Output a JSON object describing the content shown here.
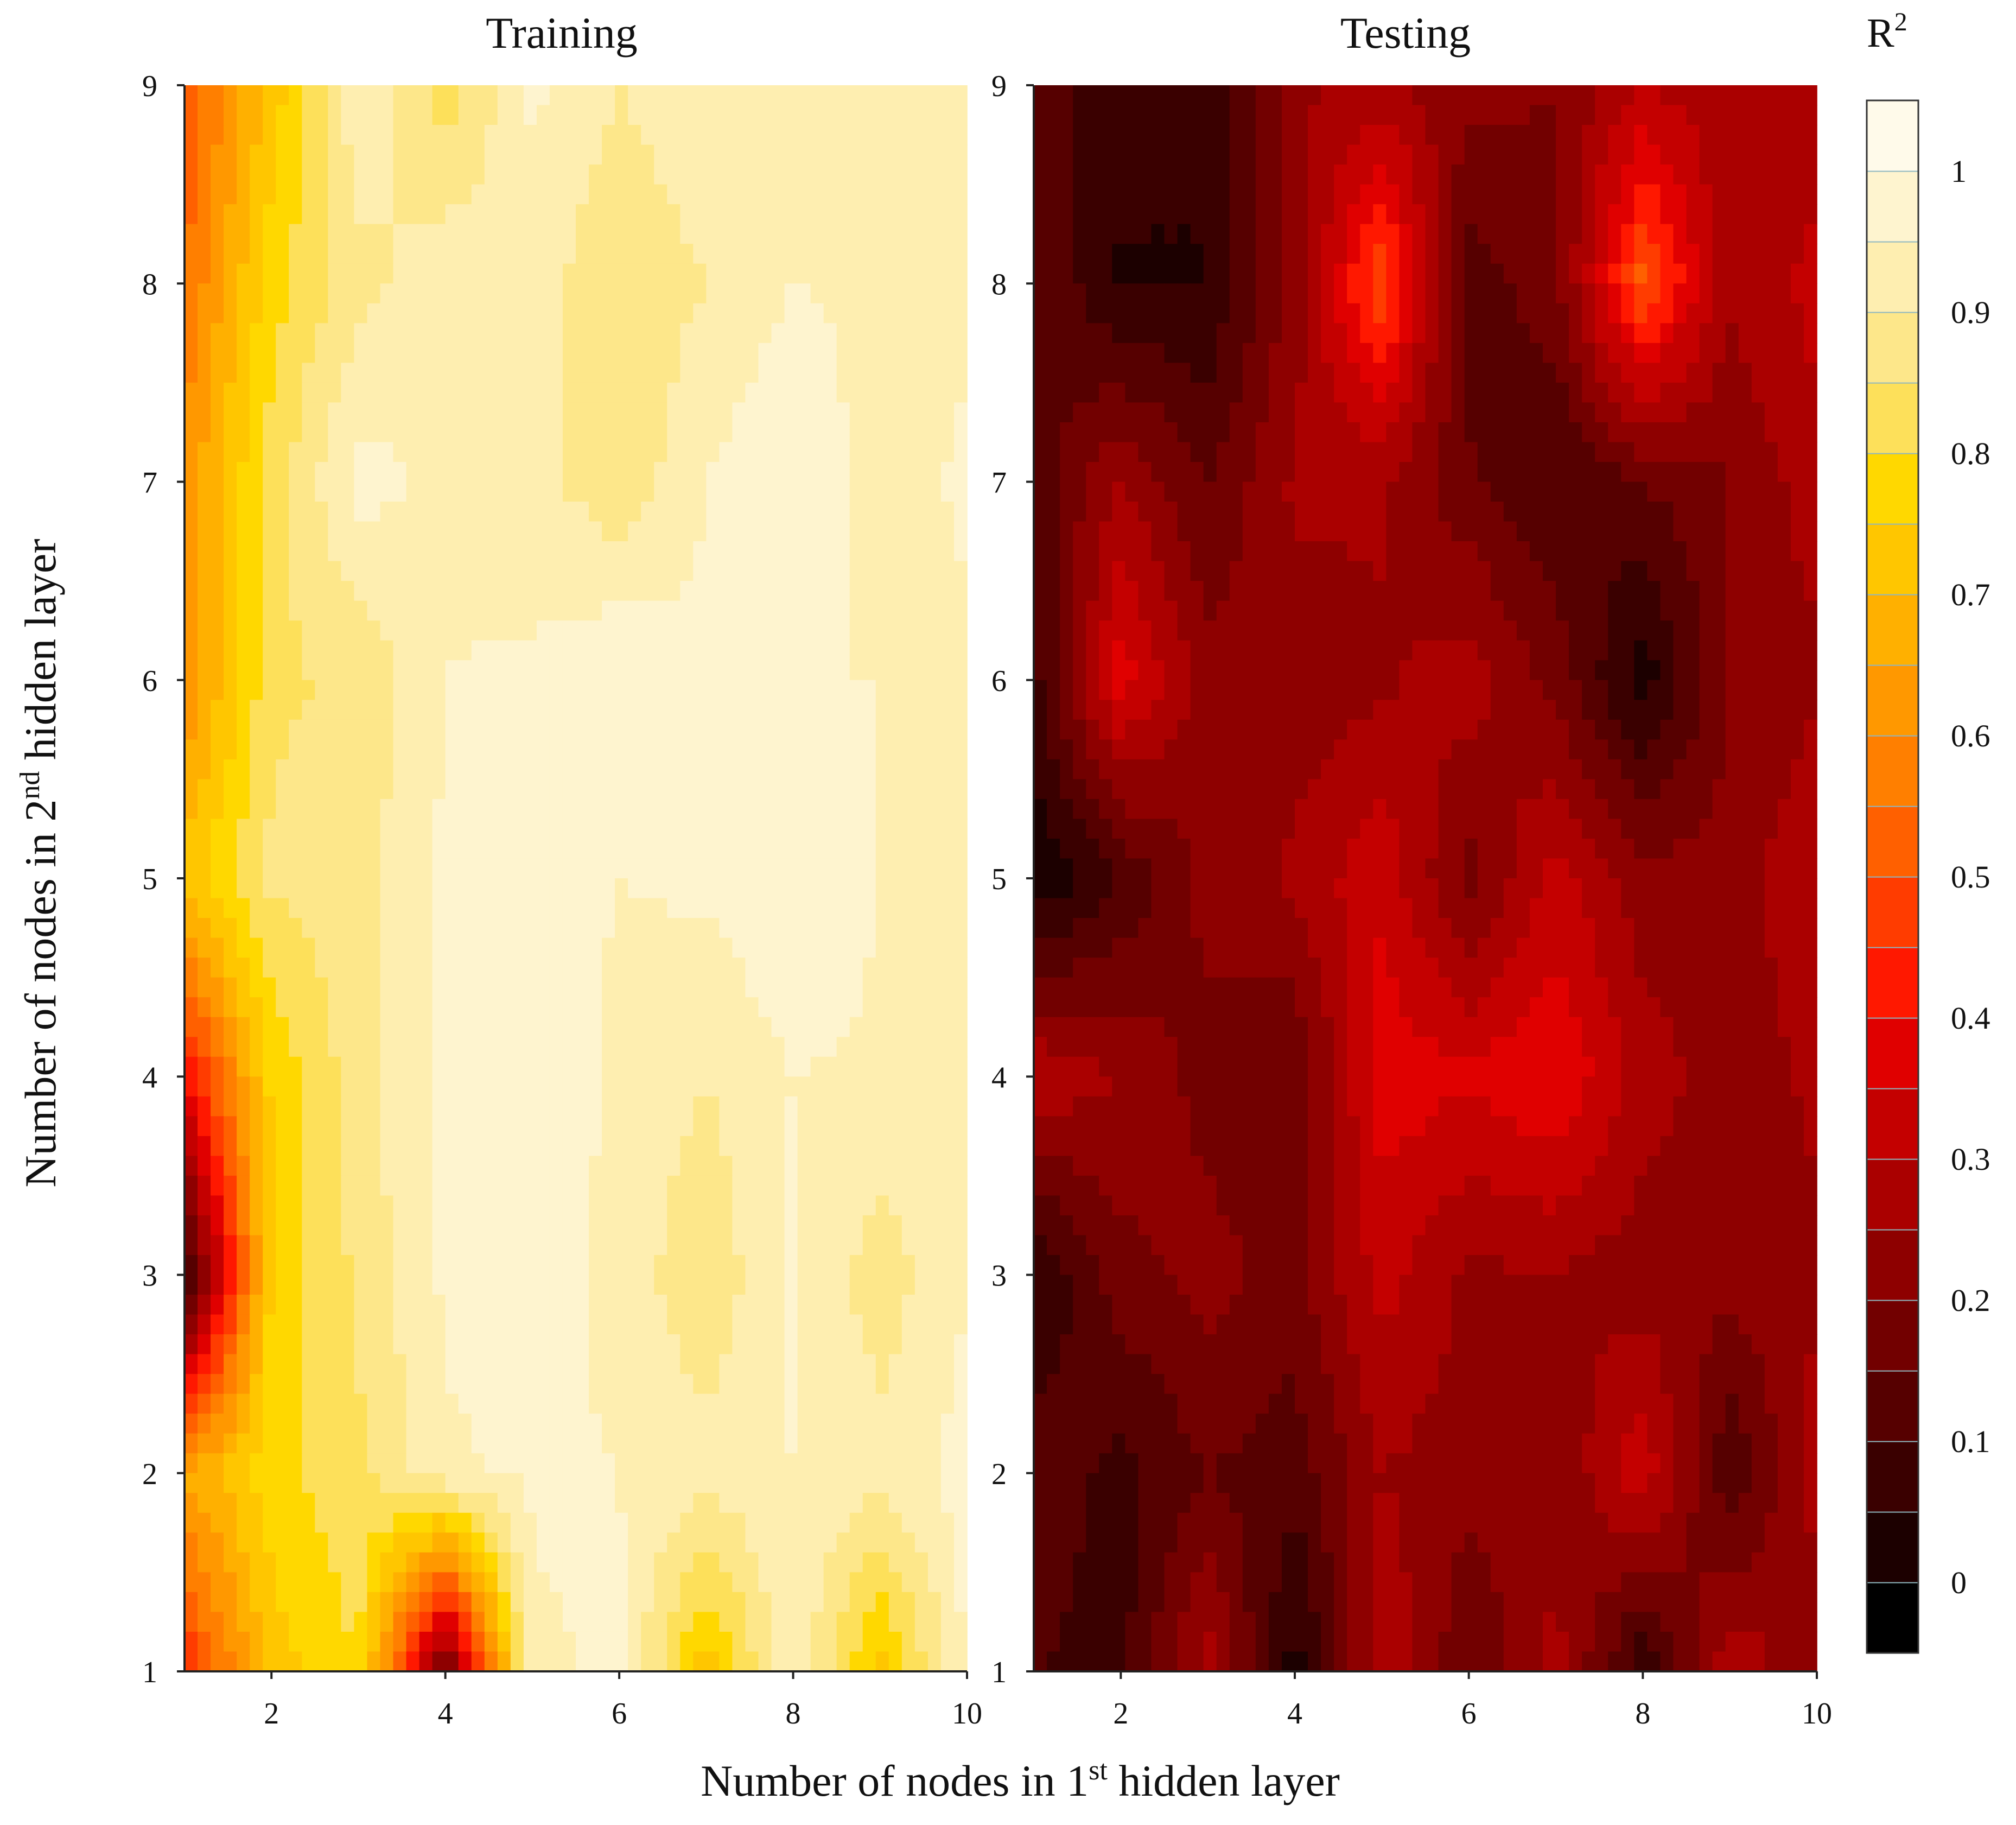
{
  "figure": {
    "xlabel_main": "Number of nodes in 1",
    "xlabel_sup": "st",
    "xlabel_rest": " hidden layer",
    "ylabel_main": "Number of nodes in 2",
    "ylabel_sup": "nd",
    "ylabel_rest": " hidden layer",
    "colorbar_title_base": "R",
    "colorbar_title_sup": "2"
  },
  "chart_data": [
    {
      "type": "heatmap",
      "title": "Training",
      "xlim": [
        1,
        10
      ],
      "ylim": [
        1,
        9
      ],
      "x_ticks": [
        "2",
        "4",
        "6",
        "8",
        "10"
      ],
      "y_ticks": [
        "1",
        "2",
        "3",
        "4",
        "5",
        "6",
        "7",
        "8",
        "9"
      ],
      "x": [
        1,
        2,
        3,
        4,
        5,
        6,
        7,
        8,
        9,
        10
      ],
      "y": [
        1,
        2,
        3,
        4,
        5,
        6,
        7,
        8,
        9
      ],
      "z": [
        [
          0.45,
          0.72,
          0.8,
          0.15,
          0.94,
          0.96,
          0.72,
          0.94,
          0.72,
          0.96
        ],
        [
          0.65,
          0.78,
          0.84,
          0.94,
          0.96,
          0.95,
          0.92,
          0.95,
          0.92,
          0.97
        ],
        [
          0.05,
          0.76,
          0.86,
          0.96,
          0.98,
          0.93,
          0.86,
          0.96,
          0.87,
          0.95
        ],
        [
          0.4,
          0.76,
          0.88,
          0.97,
          0.99,
          0.94,
          0.9,
          0.95,
          0.94,
          0.93
        ],
        [
          0.72,
          0.86,
          0.88,
          0.96,
          0.96,
          0.95,
          0.96,
          1.0,
          0.95,
          0.95
        ],
        [
          0.6,
          0.84,
          0.86,
          0.95,
          0.96,
          1.0,
          0.96,
          0.95,
          0.95,
          0.94
        ],
        [
          0.62,
          0.82,
          0.97,
          0.94,
          0.92,
          0.86,
          0.95,
          1.0,
          0.92,
          0.96
        ],
        [
          0.55,
          0.78,
          0.88,
          0.94,
          0.92,
          0.86,
          0.9,
          0.95,
          0.94,
          0.94
        ],
        [
          0.5,
          0.72,
          0.94,
          0.82,
          0.96,
          0.9,
          0.94,
          0.95,
          0.95,
          0.93
        ]
      ]
    },
    {
      "type": "heatmap",
      "title": "Testing",
      "xlim": [
        1,
        10
      ],
      "ylim": [
        1,
        9
      ],
      "x_ticks": [
        "2",
        "4",
        "6",
        "8",
        "10"
      ],
      "y_ticks": [
        "1",
        "2",
        "3",
        "4",
        "5",
        "6",
        "7",
        "8",
        "9"
      ],
      "x": [
        1,
        2,
        3,
        4,
        5,
        6,
        7,
        8,
        9,
        10
      ],
      "y": [
        1,
        2,
        3,
        4,
        5,
        6,
        7,
        8,
        9
      ],
      "z": [
        [
          0.1,
          0.08,
          0.28,
          0.02,
          0.3,
          0.15,
          0.28,
          0.05,
          0.3,
          0.2
        ],
        [
          0.14,
          0.08,
          0.15,
          0.12,
          0.25,
          0.22,
          0.2,
          0.34,
          0.1,
          0.28
        ],
        [
          0.04,
          0.18,
          0.22,
          0.18,
          0.32,
          0.24,
          0.25,
          0.22,
          0.22,
          0.24
        ],
        [
          0.3,
          0.25,
          0.18,
          0.15,
          0.38,
          0.36,
          0.4,
          0.28,
          0.22,
          0.26
        ],
        [
          0.0,
          0.1,
          0.22,
          0.26,
          0.34,
          0.18,
          0.32,
          0.22,
          0.22,
          0.3
        ],
        [
          0.08,
          0.38,
          0.22,
          0.22,
          0.24,
          0.28,
          0.18,
          0.02,
          0.2,
          0.24
        ],
        [
          0.12,
          0.25,
          0.15,
          0.26,
          0.26,
          0.16,
          0.1,
          0.15,
          0.2,
          0.28
        ],
        [
          0.16,
          0.04,
          0.05,
          0.22,
          0.5,
          0.12,
          0.18,
          0.52,
          0.26,
          0.32
        ],
        [
          0.12,
          0.08,
          0.05,
          0.24,
          0.26,
          0.22,
          0.2,
          0.3,
          0.26,
          0.26
        ]
      ]
    }
  ],
  "colorbar": {
    "range": [
      -0.05,
      1.05
    ],
    "ticks": [
      "0",
      "0.1",
      "0.2",
      "0.3",
      "0.4",
      "0.5",
      "0.6",
      "0.7",
      "0.8",
      "0.9",
      "1"
    ],
    "tick_values": [
      0,
      0.1,
      0.2,
      0.3,
      0.4,
      0.5,
      0.6,
      0.7,
      0.8,
      0.9,
      1.0
    ],
    "levels": [
      -0.05,
      0,
      0.05,
      0.1,
      0.15,
      0.2,
      0.25,
      0.3,
      0.35,
      0.4,
      0.45,
      0.5,
      0.55,
      0.6,
      0.65,
      0.7,
      0.75,
      0.8,
      0.85,
      0.9,
      0.95,
      1.0,
      1.05
    ],
    "colors": [
      "#000000",
      "#1c0000",
      "#3a0000",
      "#560000",
      "#720000",
      "#8e0000",
      "#aa0000",
      "#c40000",
      "#e00000",
      "#ff1800",
      "#ff3c00",
      "#ff6000",
      "#ff7f00",
      "#ff9800",
      "#ffb000",
      "#ffc600",
      "#ffd800",
      "#fde05a",
      "#fde78a",
      "#feeeb0",
      "#fef4cf",
      "#fffaea"
    ]
  }
}
